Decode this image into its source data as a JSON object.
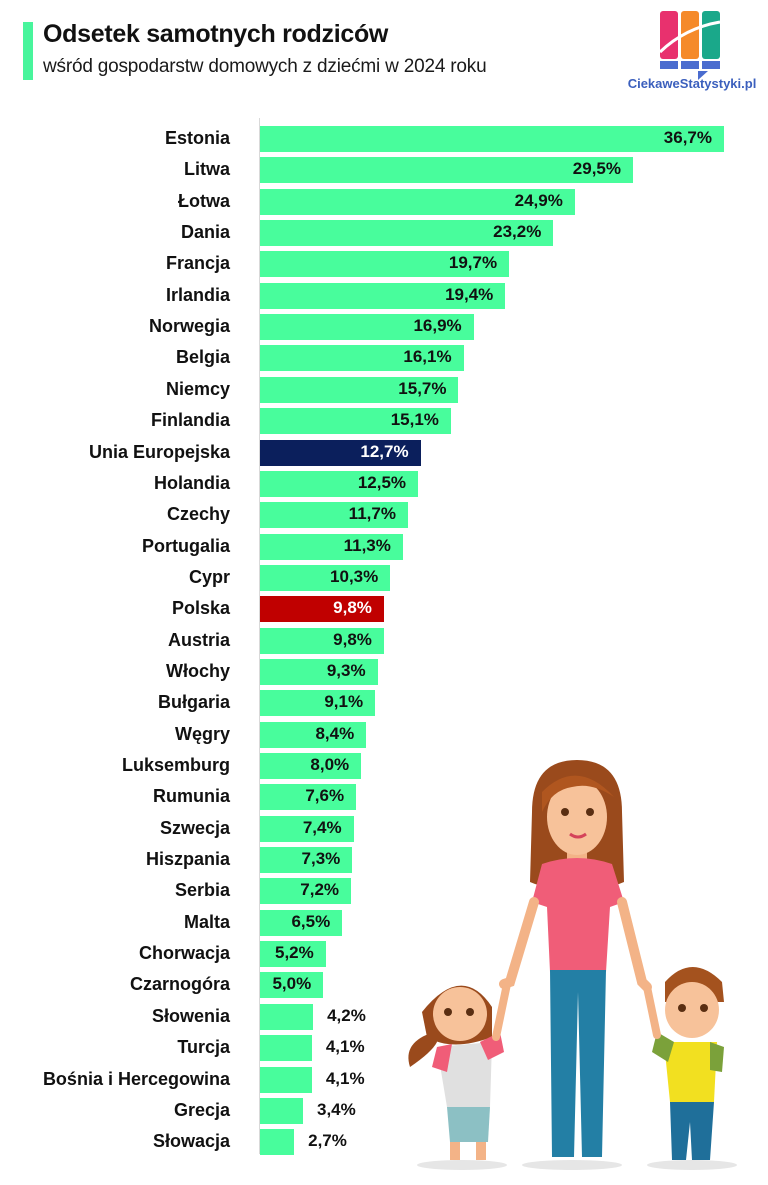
{
  "header": {
    "title": "Odsetek samotnych rodziców",
    "subtitle": "wśród gospodarstw domowych z dziećmi w 2024 roku",
    "logo_text": "CiekaweStatystyki.pl"
  },
  "colors": {
    "default_bar": "#48fd9c",
    "eu_bar": "#0b1f5c",
    "poland_bar": "#c00000",
    "accent": "#48f59c",
    "logo_pink": "#e8316e",
    "logo_orange": "#f58a2a",
    "logo_teal": "#1aa88a",
    "logo_blue": "#4a6ccf"
  },
  "chart_data": {
    "type": "bar",
    "orientation": "horizontal",
    "title": "Odsetek samotnych rodziców",
    "subtitle": "wśród gospodarstw domowych z dziećmi w 2024 roku",
    "xlabel": "",
    "ylabel": "",
    "unit": "%",
    "xlim": [
      0,
      37
    ],
    "grid": false,
    "legend": null,
    "categories": [
      "Estonia",
      "Litwa",
      "Łotwa",
      "Dania",
      "Francja",
      "Irlandia",
      "Norwegia",
      "Belgia",
      "Niemcy",
      "Finlandia",
      "Unia Europejska",
      "Holandia",
      "Czechy",
      "Portugalia",
      "Cypr",
      "Polska",
      "Austria",
      "Włochy",
      "Bułgaria",
      "Węgry",
      "Luksemburg",
      "Rumunia",
      "Szwecja",
      "Hiszpania",
      "Serbia",
      "Malta",
      "Chorwacja",
      "Czarnogóra",
      "Słowenia",
      "Turcja",
      "Bośnia i Hercegowina",
      "Grecja",
      "Słowacja"
    ],
    "values": [
      36.7,
      29.5,
      24.9,
      23.2,
      19.7,
      19.4,
      16.9,
      16.1,
      15.7,
      15.1,
      12.7,
      12.5,
      11.7,
      11.3,
      10.3,
      9.8,
      9.8,
      9.3,
      9.1,
      8.4,
      8.0,
      7.6,
      7.4,
      7.3,
      7.2,
      6.5,
      5.2,
      5.0,
      4.2,
      4.1,
      4.1,
      3.4,
      2.7
    ],
    "labels": [
      "36,7%",
      "29,5%",
      "24,9%",
      "23,2%",
      "19,7%",
      "19,4%",
      "16,9%",
      "16,1%",
      "15,7%",
      "15,1%",
      "12,7%",
      "12,5%",
      "11,7%",
      "11,3%",
      "10,3%",
      "9,8%",
      "9,8%",
      "9,3%",
      "9,1%",
      "8,4%",
      "8,0%",
      "7,6%",
      "7,4%",
      "7,3%",
      "7,2%",
      "6,5%",
      "5,2%",
      "5,0%",
      "4,2%",
      "4,1%",
      "4,1%",
      "3,4%",
      "2,7%"
    ],
    "highlights": {
      "Unia Europejska": "#0b1f5c",
      "Polska": "#c00000"
    }
  },
  "illustration": {
    "description": "mother holding hands with two children"
  }
}
